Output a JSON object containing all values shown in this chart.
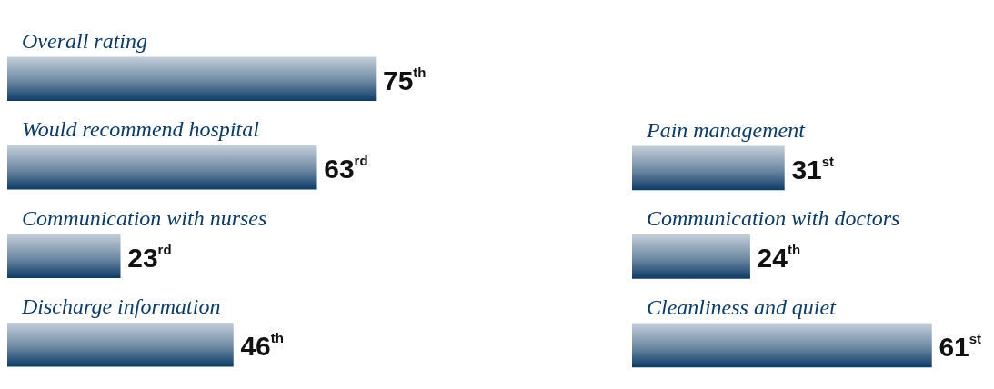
{
  "chart_data": [
    {
      "type": "bar",
      "orientation": "horizontal",
      "color": "#0d3b66",
      "categories": [
        "Overall rating",
        "Would recommend hospital",
        "Communication with nurses",
        "Discharge information"
      ],
      "values": [
        75,
        63,
        23,
        46
      ],
      "value_labels": [
        "75$^{th}$",
        "63$^{rd}$",
        "23$^{rd}$",
        "46$^{th}$"
      ]
    },
    {
      "type": "bar",
      "orientation": "horizontal",
      "color": "#0d3b66",
      "categories": [
        "Pain management",
        "Communication with doctors",
        "Cleanliness and quiet"
      ],
      "values": [
        31,
        24,
        61
      ],
      "value_labels": [
        "31$^{st}$",
        "24$^{th}$",
        "61$^{st}$"
      ]
    }
  ]
}
